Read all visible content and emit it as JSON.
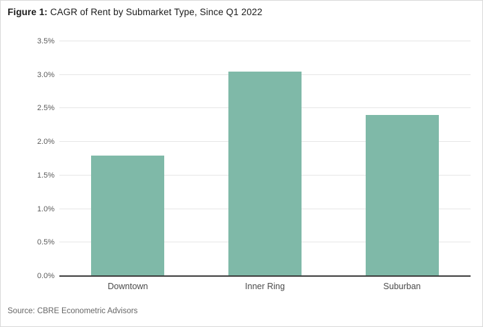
{
  "figure": {
    "title_label": "Figure 1:",
    "title_text": "CAGR of Rent by Submarket Type, Since Q1 2022",
    "source": "Source: CBRE Econometric Advisors"
  },
  "colors": {
    "bar": "#7FB9A8",
    "gridline": "#E6E6E6",
    "axis_line": "#3D3D3D",
    "title_text": "#1B1B1B",
    "ytick_text": "#5A5A5A",
    "xtick_text": "#4A4A4A",
    "source_text": "#666666",
    "frame_border": "#D9D9D9",
    "background": "#FFFFFF"
  },
  "chart_data": {
    "type": "bar",
    "title": "Figure 1: CAGR of Rent by Submarket Type, Since Q1 2022",
    "categories": [
      "Downtown",
      "Inner Ring",
      "Suburban"
    ],
    "values": [
      1.8,
      3.05,
      2.4
    ],
    "value_unit": "percent",
    "xlabel": "",
    "ylabel": "",
    "ylim": [
      0,
      3.5
    ],
    "ytick_step": 0.5,
    "yticks": [
      "0.0%",
      "0.5%",
      "1.0%",
      "1.5%",
      "2.0%",
      "2.5%",
      "3.0%",
      "3.5%"
    ],
    "grid": "horizontal",
    "legend": "none",
    "source": "Source: CBRE Econometric Advisors"
  }
}
